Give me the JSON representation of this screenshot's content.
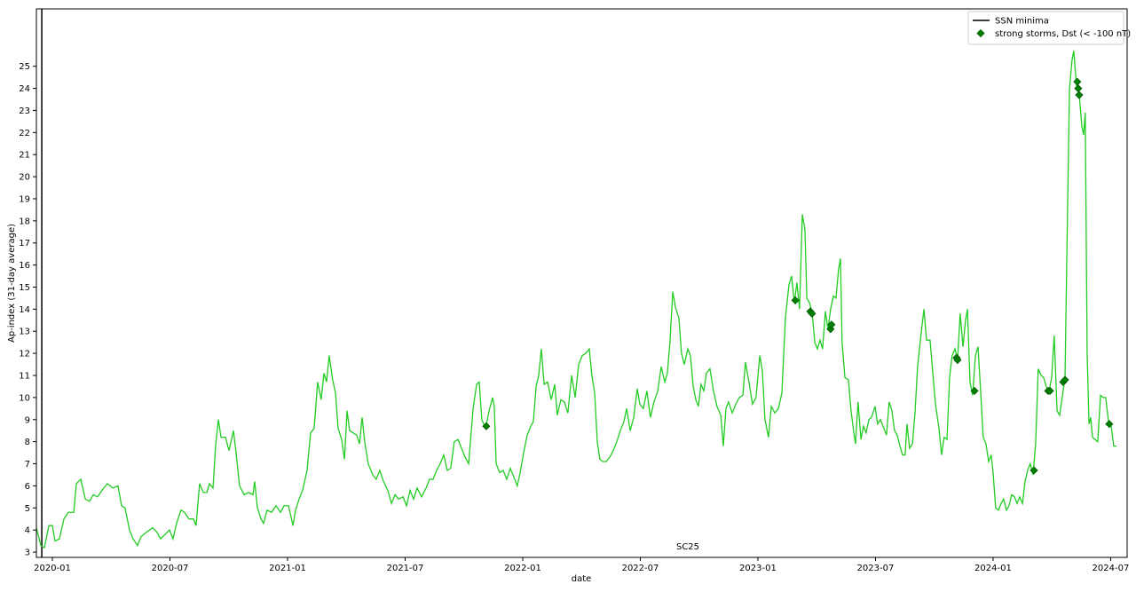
{
  "chart_data": {
    "type": "line",
    "x_label": "date",
    "y_label": "Ap-index (31-day average)",
    "annotations": [
      "SC25"
    ],
    "legend": "upper right",
    "xlim": [
      2019.932,
      2024.57
    ],
    "ylim": [
      2.76,
      27.6
    ],
    "xticks": [
      {
        "value": 2020,
        "label": "2020-01"
      },
      {
        "value": 2020.5,
        "label": "2020-07"
      },
      {
        "value": 2021,
        "label": "2021-01"
      },
      {
        "value": 2021.5,
        "label": "2021-07"
      },
      {
        "value": 2022,
        "label": "2022-01"
      },
      {
        "value": 2022.5,
        "label": "2022-07"
      },
      {
        "value": 2023,
        "label": "2023-01"
      },
      {
        "value": 2023.5,
        "label": "2023-07"
      },
      {
        "value": 2024,
        "label": "2024-01"
      },
      {
        "value": 2024.5,
        "label": "2024-07"
      }
    ],
    "yticks": [
      3,
      4,
      5,
      6,
      7,
      8,
      9,
      10,
      11,
      12,
      13,
      14,
      15,
      16,
      17,
      18,
      19,
      20,
      21,
      22,
      23,
      24,
      25
    ],
    "vlines": [
      {
        "name": "SSN minima",
        "x": 2019.955,
        "color": "#000000"
      }
    ],
    "series": [
      {
        "type": "line",
        "color": "#22cc22",
        "x": [
          2019.932,
          2019.951,
          2019.966,
          2019.985,
          2020,
          2020.011,
          2020.03,
          2020.049,
          2020.068,
          2020.091,
          2020.102,
          2020.121,
          2020.14,
          2020.158,
          2020.174,
          2020.192,
          2020.211,
          2020.234,
          2020.257,
          2020.279,
          2020.294,
          2020.309,
          2020.328,
          2020.343,
          2020.362,
          2020.377,
          2020.4,
          2020.426,
          2020.445,
          2020.46,
          2020.479,
          2020.498,
          2020.513,
          2020.528,
          2020.547,
          2020.562,
          2020.581,
          2020.6,
          2020.611,
          2020.626,
          2020.642,
          2020.657,
          2020.668,
          2020.683,
          2020.694,
          2020.706,
          2020.717,
          2020.736,
          2020.751,
          2020.77,
          2020.781,
          2020.796,
          2020.815,
          2020.834,
          2020.853,
          2020.86,
          2020.872,
          2020.887,
          2020.898,
          2020.913,
          2020.932,
          2020.951,
          2020.97,
          2020.985,
          2021.004,
          2021.023,
          2021.034,
          2021.049,
          2021.064,
          2021.083,
          2021.098,
          2021.113,
          2021.128,
          2021.143,
          2021.155,
          2021.166,
          2021.177,
          2021.192,
          2021.204,
          2021.215,
          2021.23,
          2021.242,
          2021.253,
          2021.264,
          2021.279,
          2021.294,
          2021.306,
          2021.317,
          2021.328,
          2021.343,
          2021.362,
          2021.377,
          2021.392,
          2021.408,
          2021.426,
          2021.442,
          2021.457,
          2021.472,
          2021.491,
          2021.506,
          2021.521,
          2021.536,
          2021.551,
          2021.57,
          2021.589,
          2021.604,
          2021.619,
          2021.634,
          2021.649,
          2021.664,
          2021.679,
          2021.694,
          2021.709,
          2021.725,
          2021.74,
          2021.755,
          2021.77,
          2021.789,
          2021.804,
          2021.815,
          2021.826,
          2021.842,
          2021.857,
          2021.872,
          2021.879,
          2021.887,
          2021.902,
          2021.917,
          2021.932,
          2021.947,
          2021.962,
          2021.977,
          2021.989,
          2022.004,
          2022.019,
          2022.034,
          2022.045,
          2022.057,
          2022.068,
          2022.079,
          2022.091,
          2022.106,
          2022.121,
          2022.136,
          2022.147,
          2022.162,
          2022.177,
          2022.192,
          2022.208,
          2022.223,
          2022.238,
          2022.253,
          2022.268,
          2022.283,
          2022.294,
          2022.306,
          2022.317,
          2022.328,
          2022.34,
          2022.355,
          2022.37,
          2022.385,
          2022.4,
          2022.415,
          2022.43,
          2022.442,
          2022.457,
          2022.472,
          2022.487,
          2022.498,
          2022.513,
          2022.528,
          2022.543,
          2022.558,
          2022.574,
          2022.589,
          2022.604,
          2022.615,
          2022.626,
          2022.638,
          2022.649,
          2022.664,
          2022.675,
          2022.687,
          2022.702,
          2022.713,
          2022.725,
          2022.736,
          2022.747,
          2022.758,
          2022.77,
          2022.781,
          2022.796,
          2022.811,
          2022.826,
          2022.842,
          2022.853,
          2022.864,
          2022.875,
          2022.891,
          2022.906,
          2022.921,
          2022.936,
          2022.947,
          2022.962,
          2022.977,
          2022.992,
          2023.008,
          2023.019,
          2023.03,
          2023.045,
          2023.057,
          2023.072,
          2023.087,
          2023.102,
          2023.117,
          2023.132,
          2023.143,
          2023.155,
          2023.166,
          2023.177,
          2023.189,
          2023.2,
          2023.208,
          2023.219,
          2023.23,
          2023.242,
          2023.253,
          2023.264,
          2023.275,
          2023.287,
          2023.298,
          2023.309,
          2023.321,
          2023.332,
          2023.343,
          2023.351,
          2023.358,
          2023.37,
          2023.385,
          2023.396,
          2023.408,
          2023.415,
          2023.426,
          2023.438,
          2023.449,
          2023.46,
          2023.472,
          2023.483,
          2023.498,
          2023.509,
          2023.521,
          2023.532,
          2023.547,
          2023.558,
          2023.57,
          2023.581,
          2023.592,
          2023.604,
          2023.615,
          2023.626,
          2023.634,
          2023.645,
          2023.657,
          2023.668,
          2023.679,
          2023.691,
          2023.706,
          2023.717,
          2023.732,
          2023.743,
          2023.755,
          2023.77,
          2023.781,
          2023.792,
          2023.804,
          2023.815,
          2023.826,
          2023.838,
          2023.849,
          2023.86,
          2023.872,
          2023.883,
          2023.891,
          2023.902,
          2023.913,
          2023.925,
          2023.936,
          2023.947,
          2023.958,
          2023.97,
          2023.981,
          2023.992,
          2024,
          2024.011,
          2024.023,
          2024.034,
          2024.045,
          2024.057,
          2024.068,
          2024.079,
          2024.091,
          2024.102,
          2024.113,
          2024.125,
          2024.136,
          2024.147,
          2024.158,
          2024.17,
          2024.181,
          2024.192,
          2024.204,
          2024.215,
          2024.226,
          2024.238,
          2024.249,
          2024.26,
          2024.272,
          2024.283,
          2024.294,
          2024.306,
          2024.313,
          2024.325,
          2024.336,
          2024.343,
          2024.355,
          2024.366,
          2024.377,
          2024.385,
          2024.392,
          2024.4,
          2024.408,
          2024.415,
          2024.423,
          2024.434,
          2024.445,
          2024.457,
          2024.468,
          2024.479,
          2024.491,
          2024.502,
          2024.513,
          2024.525
        ],
        "values": [
          4.1,
          3.3,
          3.2,
          4.2,
          4.2,
          3.5,
          3.6,
          4.5,
          4.8,
          4.8,
          6.1,
          6.3,
          5.4,
          5.3,
          5.6,
          5.5,
          5.8,
          6.1,
          5.9,
          6.0,
          5.1,
          5.0,
          4.0,
          3.6,
          3.3,
          3.7,
          3.9,
          4.1,
          3.9,
          3.6,
          3.8,
          4.0,
          3.6,
          4.3,
          4.9,
          4.8,
          4.5,
          4.5,
          4.2,
          6.1,
          5.7,
          5.7,
          6.1,
          5.9,
          7.8,
          9.0,
          8.2,
          8.2,
          7.6,
          8.5,
          7.5,
          6.0,
          5.6,
          5.7,
          5.6,
          6.2,
          5.0,
          4.5,
          4.3,
          4.9,
          4.8,
          5.1,
          4.8,
          5.1,
          5.1,
          4.2,
          4.9,
          5.4,
          5.8,
          6.7,
          8.4,
          8.6,
          10.7,
          9.9,
          11.1,
          10.7,
          11.9,
          10.8,
          10.2,
          8.6,
          8.1,
          7.2,
          9.4,
          8.5,
          8.4,
          8.3,
          7.9,
          9.1,
          8.0,
          7.0,
          6.5,
          6.3,
          6.7,
          6.2,
          5.8,
          5.2,
          5.6,
          5.4,
          5.5,
          5.1,
          5.8,
          5.4,
          5.9,
          5.5,
          5.9,
          6.3,
          6.3,
          6.7,
          7.0,
          7.4,
          6.7,
          6.8,
          8.0,
          8.1,
          7.7,
          7.3,
          7.0,
          9.5,
          10.6,
          10.7,
          9.0,
          8.6,
          9.4,
          10.0,
          9.6,
          7.0,
          6.6,
          6.7,
          6.3,
          6.8,
          6.4,
          6.0,
          6.6,
          7.5,
          8.3,
          8.7,
          8.9,
          10.5,
          11.0,
          12.2,
          10.6,
          10.7,
          9.9,
          10.6,
          9.2,
          9.9,
          9.8,
          9.3,
          11.0,
          10.0,
          11.5,
          11.9,
          12.0,
          12.2,
          11.0,
          10.2,
          8.0,
          7.2,
          7.1,
          7.1,
          7.3,
          7.6,
          8.0,
          8.5,
          8.9,
          9.5,
          8.5,
          9.1,
          10.4,
          9.7,
          9.5,
          10.3,
          9.1,
          9.8,
          10.3,
          11.4,
          10.7,
          11.1,
          12.5,
          14.8,
          14.1,
          13.6,
          12.0,
          11.5,
          12.2,
          11.9,
          10.5,
          9.9,
          9.6,
          10.6,
          10.3,
          11.1,
          11.3,
          10.3,
          9.6,
          9.2,
          7.8,
          9.5,
          9.8,
          9.3,
          9.7,
          10.0,
          10.1,
          11.6,
          10.7,
          9.7,
          10.0,
          11.9,
          11.2,
          9.0,
          8.2,
          9.6,
          9.3,
          9.5,
          10.2,
          13.6,
          15.1,
          15.5,
          14.3,
          15.2,
          14.0,
          18.3,
          17.6,
          14.5,
          14.3,
          13.9,
          12.5,
          12.2,
          12.6,
          12.2,
          13.9,
          13.1,
          14.0,
          14.6,
          14.5,
          15.8,
          16.3,
          12.5,
          10.9,
          10.8,
          9.4,
          8.4,
          7.9,
          9.8,
          8.1,
          8.7,
          8.4,
          9.0,
          9.1,
          9.6,
          8.8,
          9.0,
          8.7,
          8.3,
          9.8,
          9.4,
          8.5,
          8.3,
          7.8,
          7.4,
          7.4,
          8.8,
          7.7,
          7.9,
          9.3,
          11.4,
          12.6,
          14.0,
          12.6,
          12.6,
          11.2,
          9.7,
          8.6,
          7.4,
          8.2,
          8.1,
          10.9,
          11.9,
          12.2,
          11.7,
          13.8,
          12.3,
          13.5,
          14.0,
          10.7,
          10.1,
          11.9,
          12.3,
          10.3,
          8.2,
          7.9,
          7.1,
          7.4,
          6.6,
          5.0,
          4.9,
          5.2,
          5.4,
          4.9,
          5.1,
          5.6,
          5.5,
          5.2,
          5.5,
          5.2,
          6.2,
          6.7,
          7.0,
          6.5,
          7.9,
          11.3,
          11.0,
          10.9,
          10.5,
          10.3,
          10.9,
          12.8,
          9.4,
          9.2,
          10.0,
          10.9,
          16.0,
          24.0,
          25.3,
          25.7,
          24.1,
          23.8,
          22.3,
          21.9,
          22.9,
          12.0,
          8.8,
          9.1,
          8.2,
          8.1,
          8.0,
          10.1,
          10.0,
          10.0,
          8.9,
          8.7,
          7.8,
          7.8
        ]
      },
      {
        "type": "scatter",
        "name": "strong storms, Dst (< -100 nT)",
        "color": "#008000",
        "marker": "diamond",
        "x": [
          2021.845,
          2023.159,
          2023.223,
          2023.23,
          2023.309,
          2023.313,
          2023.845,
          2023.849,
          2023.921,
          2024.174,
          2024.234,
          2024.242,
          2024.298,
          2024.306,
          2024.358,
          2024.362,
          2024.366,
          2024.494
        ],
        "values": [
          8.7,
          14.4,
          13.9,
          13.8,
          13.1,
          13.3,
          11.8,
          11.7,
          10.3,
          6.7,
          10.3,
          10.3,
          10.7,
          10.8,
          24.3,
          24.0,
          23.7,
          8.8
        ]
      }
    ]
  }
}
